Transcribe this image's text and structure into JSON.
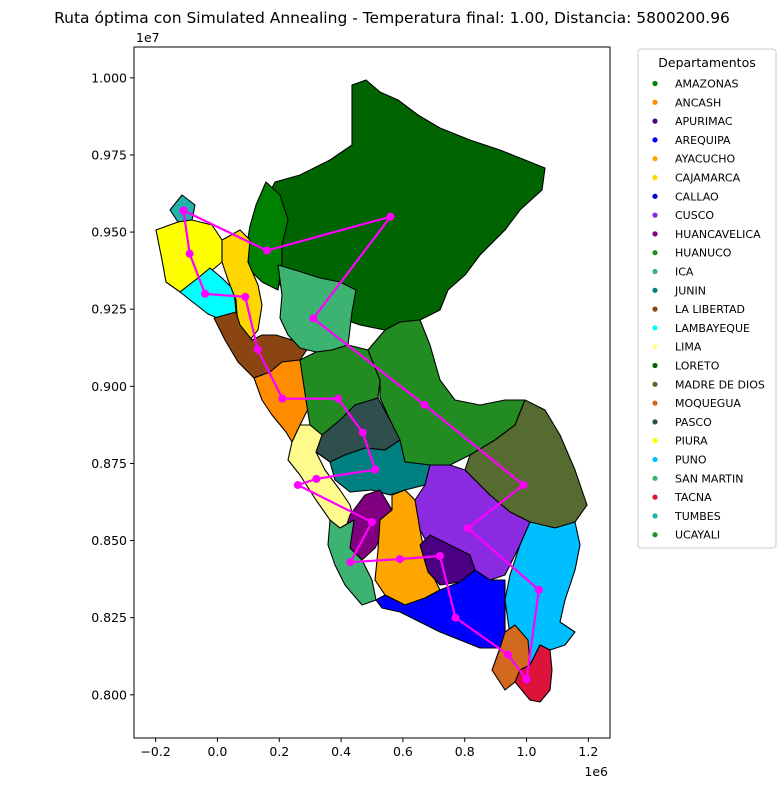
{
  "title": "Ruta óptima con Simulated Annealing - Temperatura final: 1.00, Distancia: 5800200.96",
  "map": {
    "x_axis": {
      "range": [
        -0.27,
        1.27
      ],
      "ticks": [
        -0.2,
        0.0,
        0.2,
        0.4,
        0.6,
        0.8,
        1.0,
        1.2
      ],
      "tick_labels": [
        "−0.2",
        "0.0",
        "0.2",
        "0.4",
        "0.6",
        "0.8",
        "1.0",
        "1.2"
      ],
      "offset_label": "1e6"
    },
    "y_axis": {
      "range": [
        7.86,
        10.1
      ],
      "ticks": [
        8.0,
        8.25,
        8.5,
        8.75,
        9.0,
        9.25,
        9.5,
        9.75,
        10.0
      ],
      "tick_labels": [
        "0.800",
        "0.825",
        "0.850",
        "0.875",
        "0.900",
        "0.925",
        "0.950",
        "0.975",
        "1.000"
      ],
      "offset_label": "1e7"
    },
    "route_color": "#ff00ff",
    "route": [
      [
        -0.11,
        9.57
      ],
      [
        0.16,
        9.44
      ],
      [
        0.56,
        9.55
      ],
      [
        0.31,
        9.22
      ],
      [
        0.67,
        8.94
      ],
      [
        0.99,
        8.68
      ],
      [
        0.81,
        8.54
      ],
      [
        1.04,
        8.34
      ],
      [
        1.0,
        8.05
      ],
      [
        0.94,
        8.13
      ],
      [
        0.77,
        8.25
      ],
      [
        0.72,
        8.45
      ],
      [
        0.59,
        8.44
      ],
      [
        0.43,
        8.43
      ],
      [
        0.5,
        8.56
      ],
      [
        0.26,
        8.68
      ],
      [
        0.32,
        8.7
      ],
      [
        0.51,
        8.73
      ],
      [
        0.47,
        8.85
      ],
      [
        0.39,
        8.96
      ],
      [
        0.21,
        8.96
      ],
      [
        0.13,
        9.12
      ],
      [
        0.09,
        9.29
      ],
      [
        -0.04,
        9.3
      ],
      [
        -0.09,
        9.43
      ],
      [
        -0.11,
        9.57
      ]
    ]
  },
  "legend": {
    "title": "Departamentos",
    "items": [
      {
        "label": "AMAZONAS",
        "color": "#008000"
      },
      {
        "label": "ANCASH",
        "color": "#ff8c00"
      },
      {
        "label": "APURIMAC",
        "color": "#4b0082"
      },
      {
        "label": "AREQUIPA",
        "color": "#0000ff"
      },
      {
        "label": "AYACUCHO",
        "color": "#ffa500"
      },
      {
        "label": "CAJAMARCA",
        "color": "#ffd700"
      },
      {
        "label": "CALLAO",
        "color": "#0000cd"
      },
      {
        "label": "CUSCO",
        "color": "#8a2be2"
      },
      {
        "label": "HUANCAVELICA",
        "color": "#800080"
      },
      {
        "label": "HUANUCO",
        "color": "#228b22"
      },
      {
        "label": "ICA",
        "color": "#3cb371"
      },
      {
        "label": "JUNIN",
        "color": "#008080"
      },
      {
        "label": "LA LIBERTAD",
        "color": "#8b4513"
      },
      {
        "label": "LAMBAYEQUE",
        "color": "#00ffff"
      },
      {
        "label": "LIMA",
        "color": "#fffa8c"
      },
      {
        "label": "LORETO",
        "color": "#006400"
      },
      {
        "label": "MADRE DE DIOS",
        "color": "#556b2f"
      },
      {
        "label": "MOQUEGUA",
        "color": "#d2691e"
      },
      {
        "label": "PASCO",
        "color": "#2f4f4f"
      },
      {
        "label": "PIURA",
        "color": "#ffff00"
      },
      {
        "label": "PUNO",
        "color": "#00bfff"
      },
      {
        "label": "SAN MARTIN",
        "color": "#3cb371"
      },
      {
        "label": "TACNA",
        "color": "#dc143c"
      },
      {
        "label": "TUMBES",
        "color": "#20b2aa"
      },
      {
        "label": "UCAYALI",
        "color": "#228b22"
      }
    ]
  }
}
